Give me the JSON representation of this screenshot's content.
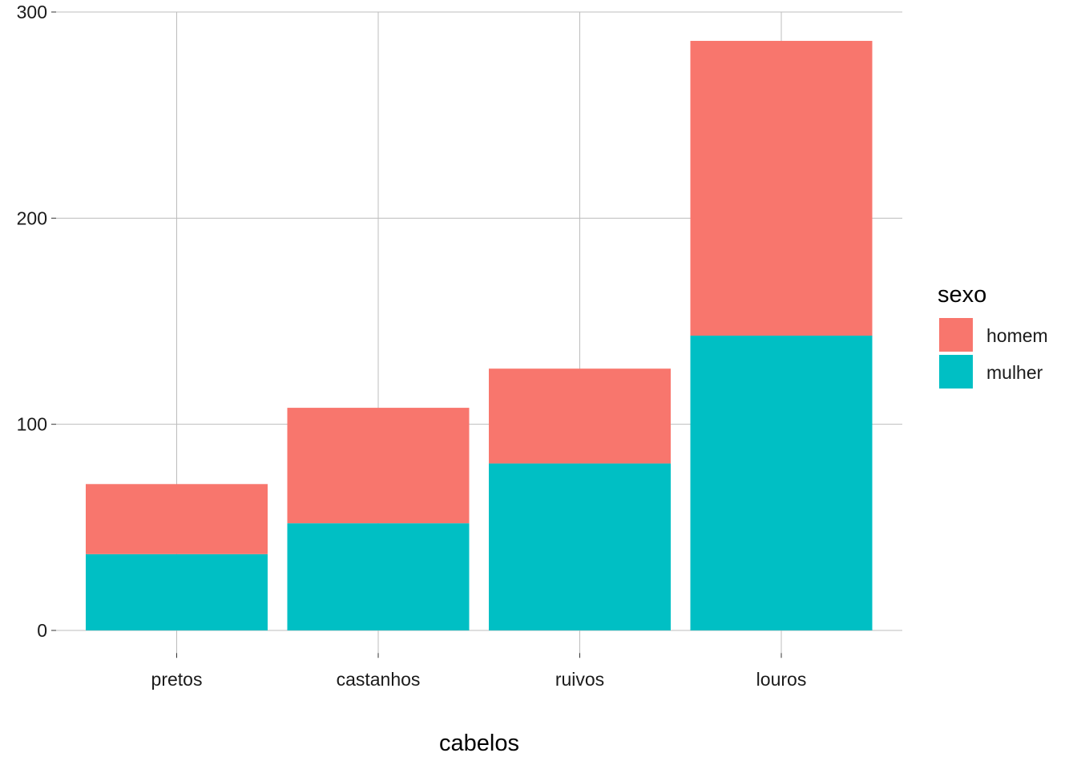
{
  "chart_data": {
    "type": "bar",
    "stacked": true,
    "xlabel": "cabelos",
    "ylabel": "",
    "categories": [
      "pretos",
      "castanhos",
      "ruivos",
      "louros"
    ],
    "series": [
      {
        "name": "homem",
        "color": "#F8766D",
        "values": [
          34,
          56,
          46,
          143
        ]
      },
      {
        "name": "mulher",
        "color": "#00BFC4",
        "values": [
          37,
          52,
          81,
          143
        ]
      }
    ],
    "ylim": [
      -11,
      300
    ],
    "yticks": [
      0,
      100,
      200,
      300
    ],
    "grid": true,
    "legend": {
      "title": "sexo",
      "position": "right"
    }
  }
}
